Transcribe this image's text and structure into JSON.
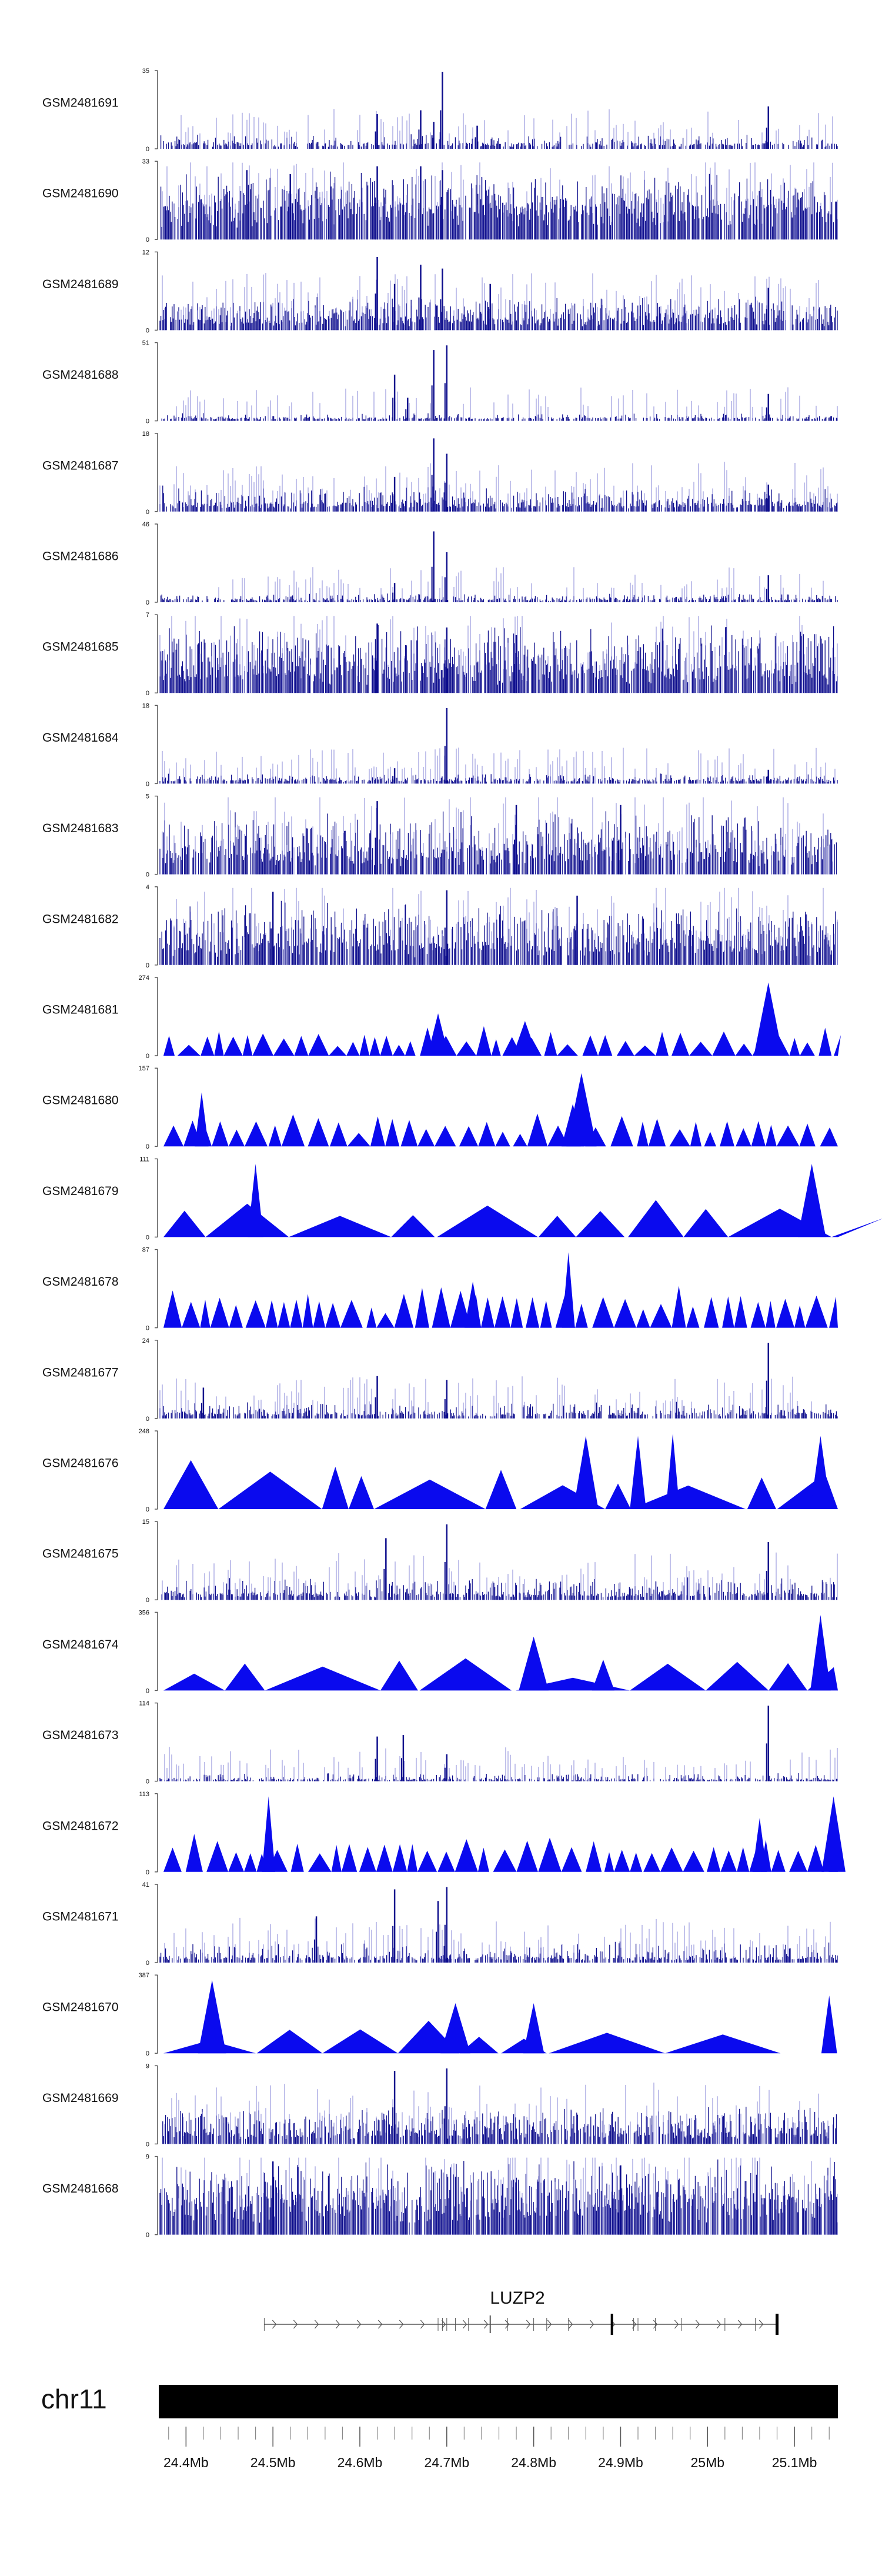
{
  "chart_data": {
    "type": "area",
    "title": "",
    "region": {
      "chromosome": "chr11",
      "start_mb": 24.37,
      "end_mb": 25.15,
      "ticks": [
        "24.4Mb",
        "24.5Mb",
        "24.6Mb",
        "24.7Mb",
        "24.8Mb",
        "24.9Mb",
        "25Mb",
        "25.1Mb"
      ],
      "tick_values": [
        24.4,
        24.5,
        24.6,
        24.7,
        24.8,
        24.9,
        25.0,
        25.1
      ]
    },
    "gene": {
      "name": "LUZP2",
      "start_mb": 24.49,
      "end_mb": 25.08,
      "strand": "+"
    },
    "colors": {
      "bar": "#0d0d8c",
      "light": "#6f6fd0",
      "fill": "#0a0aee",
      "axis": "#555555",
      "ideogram": "#000000",
      "gene": "#555555"
    },
    "series": [
      {
        "name": "GSM2481691",
        "ymax": "35",
        "ymin": "0",
        "style": "bars",
        "base": 0.05,
        "noise": 0.12,
        "density": 0.3,
        "peaks": [
          [
            24.62,
            0.45
          ],
          [
            24.67,
            0.5
          ],
          [
            24.695,
            1.0
          ],
          [
            24.685,
            0.35
          ],
          [
            24.735,
            0.3
          ],
          [
            25.07,
            0.55
          ]
        ]
      },
      {
        "name": "GSM2481690",
        "ymax": "33",
        "ymin": "0",
        "style": "dense",
        "base": 0.3,
        "noise": 0.45,
        "density": 0.55,
        "peaks": [
          [
            24.62,
            0.95
          ],
          [
            24.67,
            0.95
          ],
          [
            24.695,
            0.9
          ],
          [
            24.47,
            0.9
          ],
          [
            24.52,
            0.85
          ]
        ]
      },
      {
        "name": "GSM2481689",
        "ymax": "12",
        "ymin": "0",
        "style": "dense",
        "base": 0.1,
        "noise": 0.3,
        "density": 0.5,
        "peaks": [
          [
            24.62,
            0.95
          ],
          [
            24.67,
            0.85
          ],
          [
            24.695,
            0.8
          ],
          [
            24.64,
            0.6
          ],
          [
            24.75,
            0.6
          ],
          [
            25.07,
            0.55
          ]
        ]
      },
      {
        "name": "GSM2481688",
        "ymax": "51",
        "ymin": "0",
        "style": "bars",
        "base": 0.03,
        "noise": 0.06,
        "density": 0.3,
        "peaks": [
          [
            24.64,
            0.6
          ],
          [
            24.685,
            0.92
          ],
          [
            24.7,
            0.98
          ],
          [
            24.655,
            0.3
          ],
          [
            25.07,
            0.35
          ]
        ]
      },
      {
        "name": "GSM2481687",
        "ymax": "18",
        "ymin": "0",
        "style": "bars",
        "base": 0.08,
        "noise": 0.22,
        "density": 0.45,
        "peaks": [
          [
            24.685,
            0.95
          ],
          [
            24.7,
            0.75
          ],
          [
            24.64,
            0.45
          ],
          [
            25.07,
            0.35
          ]
        ]
      },
      {
        "name": "GSM2481686",
        "ymax": "46",
        "ymin": "0",
        "style": "bars",
        "base": 0.03,
        "noise": 0.08,
        "density": 0.3,
        "peaks": [
          [
            24.685,
            0.92
          ],
          [
            24.7,
            0.65
          ],
          [
            24.64,
            0.25
          ],
          [
            25.07,
            0.35
          ]
        ]
      },
      {
        "name": "GSM2481685",
        "ymax": "7",
        "ymin": "0",
        "style": "dense",
        "base": 0.2,
        "noise": 0.6,
        "density": 0.55,
        "peaks": [
          [
            24.62,
            0.9
          ],
          [
            24.7,
            0.85
          ],
          [
            24.78,
            0.75
          ]
        ]
      },
      {
        "name": "GSM2481684",
        "ymax": "18",
        "ymin": "0",
        "style": "bars",
        "base": 0.04,
        "noise": 0.08,
        "density": 0.35,
        "peaks": [
          [
            24.7,
            0.98
          ],
          [
            24.64,
            0.2
          ],
          [
            25.07,
            0.18
          ]
        ]
      },
      {
        "name": "GSM2481683",
        "ymax": "5",
        "ymin": "0",
        "style": "dense",
        "base": 0.2,
        "noise": 0.55,
        "density": 0.5,
        "peaks": [
          [
            24.62,
            0.95
          ],
          [
            24.78,
            0.9
          ],
          [
            24.9,
            0.9
          ]
        ]
      },
      {
        "name": "GSM2481682",
        "ymax": "4",
        "ymin": "0",
        "style": "dense",
        "base": 0.2,
        "noise": 0.55,
        "density": 0.5,
        "peaks": [
          [
            24.7,
            0.97
          ],
          [
            24.5,
            0.95
          ],
          [
            24.85,
            0.9
          ]
        ]
      },
      {
        "name": "GSM2481681",
        "ymax": "274",
        "ymin": "0",
        "style": "tri",
        "base": 0.22,
        "noise": 0.12,
        "density": 0.7,
        "peaks": [
          [
            24.69,
            0.55
          ],
          [
            25.07,
            0.95
          ],
          [
            24.79,
            0.45
          ]
        ]
      },
      {
        "name": "GSM2481680",
        "ymax": "157",
        "ymin": "0",
        "style": "tri",
        "base": 0.25,
        "noise": 0.15,
        "density": 0.8,
        "peaks": [
          [
            24.418,
            0.7
          ],
          [
            24.855,
            0.95
          ],
          [
            24.845,
            0.55
          ]
        ]
      },
      {
        "name": "GSM2481679",
        "ymax": "111",
        "ymin": "0",
        "style": "tri",
        "base": 0.35,
        "noise": 0.1,
        "density": 0.5,
        "peaks": [
          [
            24.48,
            0.95
          ],
          [
            25.12,
            0.95
          ]
        ]
      },
      {
        "name": "GSM2481678",
        "ymax": "87",
        "ymin": "0",
        "style": "tri",
        "base": 0.35,
        "noise": 0.15,
        "density": 0.9,
        "peaks": [
          [
            24.84,
            0.98
          ],
          [
            24.73,
            0.6
          ]
        ]
      },
      {
        "name": "GSM2481677",
        "ymax": "24",
        "ymin": "0",
        "style": "bars",
        "base": 0.05,
        "noise": 0.15,
        "density": 0.35,
        "peaks": [
          [
            25.07,
            0.98
          ],
          [
            24.62,
            0.55
          ],
          [
            24.7,
            0.5
          ],
          [
            24.42,
            0.4
          ]
        ]
      },
      {
        "name": "GSM2481676",
        "ymax": "248",
        "ymin": "0",
        "style": "tri",
        "base": 0.55,
        "noise": 0.1,
        "density": 0.25,
        "peaks": [
          [
            24.86,
            0.95
          ],
          [
            24.92,
            0.95
          ],
          [
            24.96,
            0.98
          ],
          [
            25.13,
            0.95
          ]
        ]
      },
      {
        "name": "GSM2481675",
        "ymax": "15",
        "ymin": "0",
        "style": "bars",
        "base": 0.06,
        "noise": 0.22,
        "density": 0.4,
        "peaks": [
          [
            24.7,
            0.98
          ],
          [
            24.63,
            0.8
          ],
          [
            25.07,
            0.75
          ]
        ]
      },
      {
        "name": "GSM2481674",
        "ymax": "356",
        "ymin": "0",
        "style": "tri",
        "base": 0.3,
        "noise": 0.1,
        "density": 0.3,
        "peaks": [
          [
            24.8,
            0.7
          ],
          [
            25.13,
            0.98
          ],
          [
            24.88,
            0.4
          ]
        ]
      },
      {
        "name": "GSM2481673",
        "ymax": "114",
        "ymin": "0",
        "style": "bars",
        "base": 0.02,
        "noise": 0.08,
        "density": 0.3,
        "peaks": [
          [
            25.07,
            0.98
          ],
          [
            24.62,
            0.58
          ],
          [
            24.65,
            0.6
          ],
          [
            24.7,
            0.35
          ]
        ]
      },
      {
        "name": "GSM2481672",
        "ymax": "113",
        "ymin": "0",
        "style": "tri",
        "base": 0.3,
        "noise": 0.15,
        "density": 0.9,
        "peaks": [
          [
            24.495,
            0.98
          ],
          [
            25.145,
            0.98
          ],
          [
            25.06,
            0.7
          ]
        ]
      },
      {
        "name": "GSM2481671",
        "ymax": "41",
        "ymin": "0",
        "style": "bars",
        "base": 0.05,
        "noise": 0.2,
        "density": 0.4,
        "peaks": [
          [
            24.64,
            0.95
          ],
          [
            24.7,
            0.98
          ],
          [
            24.69,
            0.8
          ],
          [
            24.55,
            0.6
          ]
        ]
      },
      {
        "name": "GSM2481670",
        "ymax": "387",
        "ymin": "0",
        "style": "tri",
        "base": 0.3,
        "noise": 0.1,
        "density": 0.3,
        "peaks": [
          [
            24.43,
            0.95
          ],
          [
            24.71,
            0.65
          ],
          [
            24.8,
            0.65
          ],
          [
            25.14,
            0.75
          ]
        ]
      },
      {
        "name": "GSM2481669",
        "ymax": "9",
        "ymin": "0",
        "style": "dense",
        "base": 0.1,
        "noise": 0.35,
        "density": 0.45,
        "peaks": [
          [
            24.64,
            0.95
          ],
          [
            24.7,
            0.98
          ]
        ]
      },
      {
        "name": "GSM2481668",
        "ymax": "9",
        "ymin": "0",
        "style": "dense",
        "base": 0.3,
        "noise": 0.55,
        "density": 0.55,
        "peaks": [
          [
            24.5,
            0.95
          ],
          [
            24.9,
            0.9
          ]
        ]
      }
    ]
  }
}
